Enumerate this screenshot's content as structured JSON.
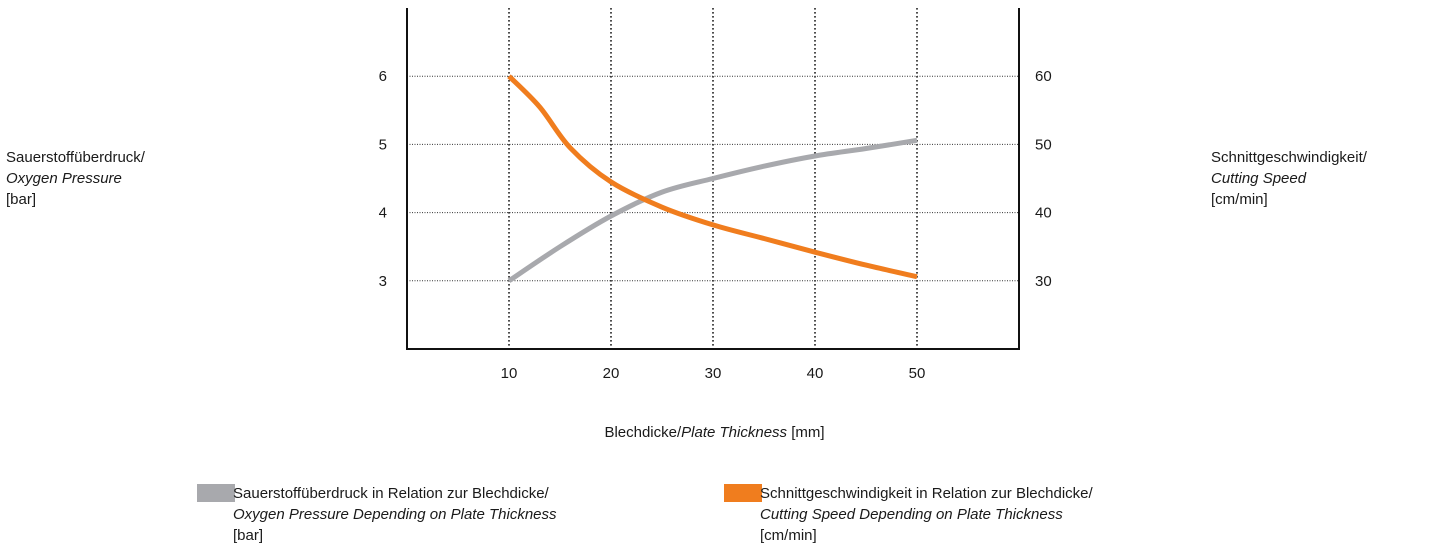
{
  "chart_data": {
    "type": "line",
    "xlabel": {
      "de": "Blechdicke/",
      "en": "Plate Thickness",
      "unit": "[mm]"
    },
    "ylabel_left": {
      "de": "Sauerstoffüberdruck/",
      "en": "Oxygen Pressure",
      "unit": "[bar]"
    },
    "ylabel_right": {
      "de": "Schnittgeschwindigkeit/",
      "en": "Cutting Speed",
      "unit": "[cm/min]"
    },
    "x_ticks": [
      10,
      20,
      30,
      40,
      50
    ],
    "y_left_ticks": [
      3,
      4,
      5,
      6
    ],
    "y_right_ticks": [
      30,
      40,
      50,
      60
    ],
    "xlim": [
      0,
      60
    ],
    "ylim_left": [
      2,
      7
    ],
    "ylim_right": [
      20,
      70
    ],
    "grid": true,
    "legend_position": "bottom",
    "series": [
      {
        "name_de": "Sauerstoffüberdruck in Relation zur Blechdicke/",
        "name_en": "Oxygen Pressure Depending on Plate Thickness",
        "unit": "[bar]",
        "axis": "left",
        "color": "#a8a9ad",
        "x": [
          10,
          15,
          20,
          25,
          30,
          35,
          40,
          45,
          50
        ],
        "y": [
          3.0,
          3.5,
          3.95,
          4.3,
          4.5,
          4.68,
          4.83,
          4.94,
          5.06
        ]
      },
      {
        "name_de": "Schnittgeschwindigkeit in Relation zur Blechdicke/",
        "name_en": "Cutting Speed Depending on Plate Thickness",
        "unit": "[cm/min]",
        "axis": "right",
        "color": "#f07d1e",
        "x": [
          10,
          13,
          16,
          20,
          25,
          30,
          35,
          40,
          45,
          50
        ],
        "y": [
          60,
          55.5,
          49.5,
          44.5,
          40.8,
          38.2,
          36.2,
          34.2,
          32.3,
          30.6
        ]
      }
    ]
  }
}
